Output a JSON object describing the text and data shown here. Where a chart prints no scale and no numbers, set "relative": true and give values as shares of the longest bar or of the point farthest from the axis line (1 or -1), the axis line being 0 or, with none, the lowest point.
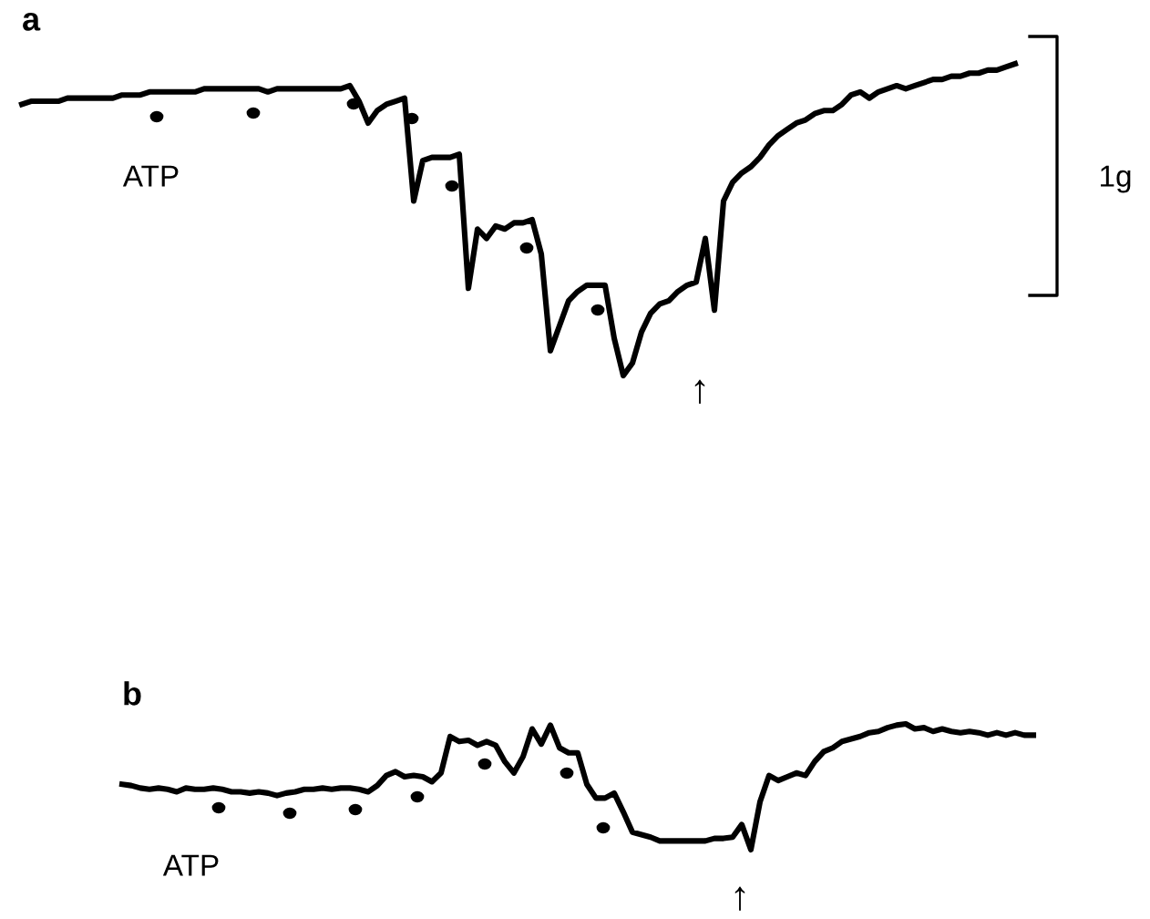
{
  "chart_data": [
    {
      "type": "line",
      "title": "a",
      "relative": true,
      "annotations": [
        "ATP",
        "↑",
        "1g"
      ],
      "categories": [
        null,
        null,
        null,
        null,
        null,
        null,
        null,
        null,
        null,
        null,
        null,
        null,
        null,
        null,
        null,
        null,
        null,
        null,
        null,
        null,
        null,
        null,
        null,
        null,
        null,
        null,
        null,
        null,
        null,
        null,
        null,
        null,
        null,
        null,
        null,
        null,
        null,
        null,
        null,
        null,
        null,
        null,
        null,
        null,
        null,
        null,
        null,
        null,
        null,
        null,
        null,
        null,
        null,
        null,
        null,
        null,
        null,
        null,
        null,
        null,
        null,
        null,
        null,
        null,
        null,
        null,
        null,
        null,
        null,
        null,
        null,
        null,
        null,
        null,
        null,
        null,
        null,
        null,
        null,
        null,
        null,
        null,
        null,
        null,
        null,
        null,
        null,
        null,
        null,
        null,
        null,
        null,
        null,
        null,
        null,
        null,
        null,
        null,
        null,
        null,
        null,
        null,
        null,
        null,
        null,
        null,
        null,
        null,
        null,
        null
      ],
      "series": [
        {
          "type": "line",
          "color": "#000000",
          "line_style": "solid",
          "values": [
            0.87,
            0.88,
            0.88,
            0.88,
            0.88,
            0.89,
            0.89,
            0.89,
            0.89,
            0.89,
            0.89,
            0.9,
            0.9,
            0.9,
            0.91,
            0.91,
            0.91,
            0.91,
            0.91,
            0.91,
            0.92,
            0.92,
            0.92,
            0.92,
            0.92,
            0.92,
            0.92,
            0.91,
            0.92,
            0.92,
            0.92,
            0.92,
            0.92,
            0.92,
            0.92,
            0.92,
            0.93,
            0.88,
            0.81,
            0.85,
            0.87,
            0.88,
            0.89,
            0.56,
            0.69,
            0.7,
            0.7,
            0.7,
            0.71,
            0.28,
            0.47,
            0.44,
            0.48,
            0.47,
            0.49,
            0.49,
            0.5,
            0.39,
            0.08,
            0.16,
            0.24,
            0.27,
            0.29,
            0.29,
            0.29,
            0.12,
            0,
            0.04,
            0.14,
            0.2,
            0.23,
            0.24,
            0.27,
            0.29,
            0.3,
            0.44,
            0.21,
            0.56,
            0.62,
            0.65,
            0.67,
            0.7,
            0.74,
            0.77,
            0.79,
            0.81,
            0.82,
            0.84,
            0.85,
            0.85,
            0.87,
            0.9,
            0.91,
            0.89,
            0.91,
            0.92,
            0.93,
            0.92,
            0.93,
            0.94,
            0.95,
            0.95,
            0.96,
            0.96,
            0.97,
            0.97,
            0.98,
            0.98,
            0.99,
            1
          ]
        }
      ]
    },
    {
      "type": "line",
      "title": "b",
      "relative": true,
      "annotations": [
        "ATP",
        "↑"
      ],
      "categories": [
        null,
        null,
        null,
        null,
        null,
        null,
        null,
        null,
        null,
        null,
        null,
        null,
        null,
        null,
        null,
        null,
        null,
        null,
        null,
        null,
        null,
        null,
        null,
        null,
        null,
        null,
        null,
        null,
        null,
        null,
        null,
        null,
        null,
        null,
        null,
        null,
        null,
        null,
        null,
        null,
        null,
        null,
        null,
        null,
        null,
        null,
        null,
        null,
        null,
        null,
        null,
        null,
        null,
        null,
        null,
        null,
        null,
        null,
        null,
        null,
        null,
        null,
        null,
        null,
        null,
        null,
        null,
        null,
        null,
        null,
        null,
        null,
        null,
        null,
        null,
        null,
        null,
        null,
        null,
        null,
        null,
        null,
        null,
        null,
        null,
        null,
        null,
        null,
        null,
        null,
        null,
        null,
        null,
        null,
        null,
        null,
        null,
        null,
        null,
        null,
        null
      ],
      "series": [
        {
          "type": "line",
          "color": "#000000",
          "line_style": "solid",
          "values": [
            0.52,
            0.51,
            0.49,
            0.48,
            0.49,
            0.48,
            0.46,
            0.49,
            0.48,
            0.48,
            0.49,
            0.48,
            0.46,
            0.46,
            0.45,
            0.46,
            0.45,
            0.43,
            0.45,
            0.46,
            0.48,
            0.48,
            0.49,
            0.48,
            0.49,
            0.49,
            0.48,
            0.46,
            0.51,
            0.59,
            0.62,
            0.58,
            0.59,
            0.58,
            0.54,
            0.61,
            0.9,
            0.86,
            0.87,
            0.83,
            0.86,
            0.83,
            0.7,
            0.61,
            0.74,
            0.96,
            0.84,
            0.99,
            0.81,
            0.77,
            0.77,
            0.52,
            0.41,
            0.41,
            0.45,
            0.3,
            0.14,
            0.12,
            0.1,
            0.07,
            0.07,
            0.07,
            0.07,
            0.07,
            0.07,
            0.09,
            0.09,
            0.1,
            0.2,
            0,
            0.38,
            0.59,
            0.55,
            0.58,
            0.61,
            0.59,
            0.7,
            0.78,
            0.81,
            0.86,
            0.88,
            0.9,
            0.93,
            0.94,
            0.97,
            0.99,
            1,
            0.96,
            0.97,
            0.94,
            0.96,
            0.94,
            0.93,
            0.94,
            0.93,
            0.91,
            0.93,
            0.91,
            0.93,
            0.91,
            0.91
          ]
        }
      ]
    }
  ]
}
